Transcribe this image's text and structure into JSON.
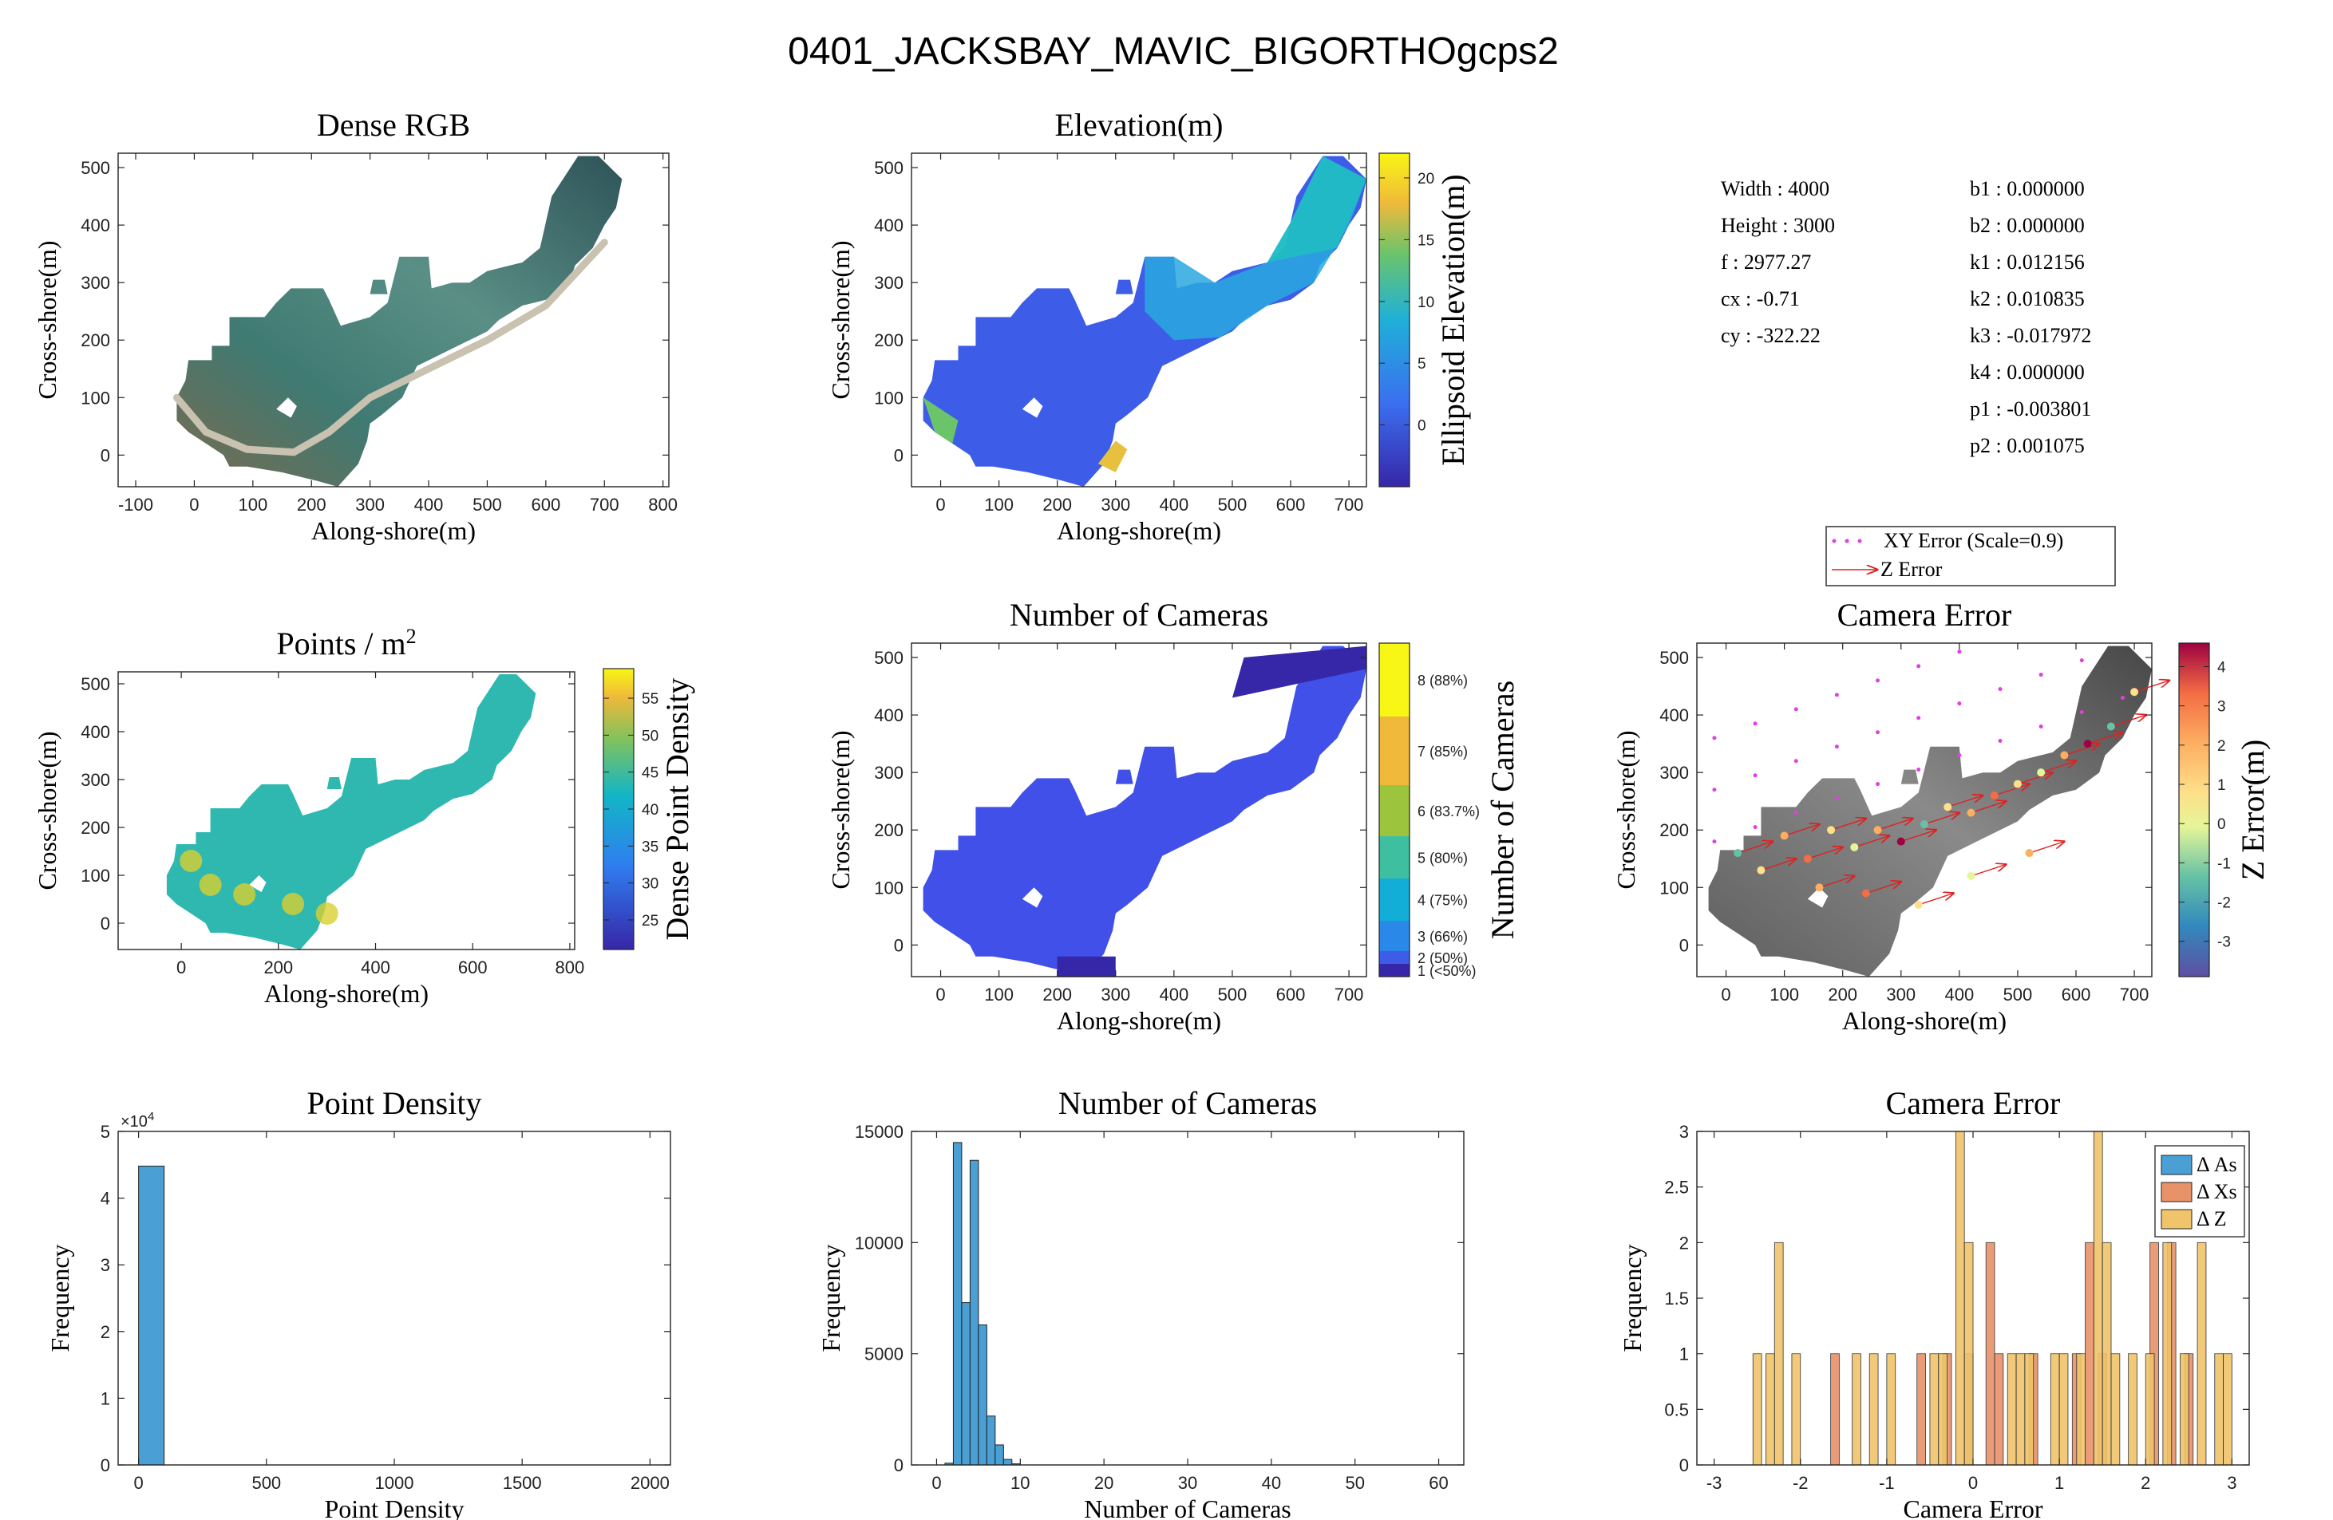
{
  "figure_title": "0401_JACKSBAY_MAVIC_BIGORTHOgcps2",
  "camera_params": {
    "left": [
      {
        "label": "Width",
        "value": "4000"
      },
      {
        "label": "Height",
        "value": "3000"
      },
      {
        "label": "f",
        "value": "2977.27"
      },
      {
        "label": "cx",
        "value": "-0.71"
      },
      {
        "label": "cy",
        "value": "-322.22"
      }
    ],
    "right": [
      {
        "label": "b1",
        "value": "0.000000"
      },
      {
        "label": "b2",
        "value": "0.000000"
      },
      {
        "label": "k1",
        "value": "0.012156"
      },
      {
        "label": "k2",
        "value": "0.010835"
      },
      {
        "label": "k3",
        "value": "-0.017972"
      },
      {
        "label": "k4",
        "value": "0.000000"
      },
      {
        "label": "p1",
        "value": "-0.003801"
      },
      {
        "label": "p2",
        "value": "0.001075"
      }
    ]
  },
  "error_legend": {
    "xy": "XY Error (Scale=0.9)",
    "z": "Z Error"
  },
  "colors": {
    "hist_blue": "#4a9fd4",
    "hist_orange": "#e8926a",
    "hist_yellow": "#f0c46a",
    "map_blue": "#3d5de8",
    "map_dark": "#3626a8"
  },
  "chart_data": [
    {
      "id": "dense-rgb",
      "type": "heatmap",
      "title": "Dense RGB",
      "xlabel": "Along-shore(m)",
      "ylabel": "Cross-shore(m)",
      "xlim": [
        -130,
        810
      ],
      "ylim": [
        -55,
        525
      ],
      "xticks": [
        -100,
        0,
        100,
        200,
        300,
        400,
        500,
        600,
        700,
        800
      ],
      "yticks": [
        0,
        100,
        200,
        300,
        400,
        500
      ]
    },
    {
      "id": "elevation",
      "type": "heatmap",
      "title": "Elevation(m)",
      "xlabel": "Along-shore(m)",
      "ylabel": "Cross-shore(m)",
      "xlim": [
        -50,
        730
      ],
      "ylim": [
        -55,
        525
      ],
      "xticks": [
        0,
        100,
        200,
        300,
        400,
        500,
        600,
        700
      ],
      "yticks": [
        0,
        100,
        200,
        300,
        400,
        500
      ],
      "colorbar": {
        "label": "Ellipsoid Elevation(m)",
        "range": [
          -5,
          22
        ],
        "ticks": [
          "0",
          "5",
          "10",
          "15",
          "20"
        ],
        "tick_values": [
          0,
          5,
          10,
          15,
          20
        ]
      }
    },
    {
      "id": "points-density-map",
      "type": "heatmap",
      "title": "Points / m",
      "title_superscript": "2",
      "xlabel": "Along-shore(m)",
      "ylabel": "Cross-shore(m)",
      "xlim": [
        -130,
        810
      ],
      "ylim": [
        -55,
        525
      ],
      "xticks": [
        0,
        200,
        400,
        600,
        800
      ],
      "yticks": [
        0,
        100,
        200,
        300,
        400,
        500
      ],
      "colorbar": {
        "label": "Dense Point Density",
        "range": [
          21,
          59
        ],
        "ticks": [
          "25",
          "30",
          "35",
          "40",
          "45",
          "50",
          "55"
        ],
        "tick_values": [
          25,
          30,
          35,
          40,
          45,
          50,
          55
        ]
      }
    },
    {
      "id": "cameras-map",
      "type": "heatmap",
      "title": "Number of Cameras",
      "xlabel": "Along-shore(m)",
      "ylabel": "Cross-shore(m)",
      "xlim": [
        -50,
        730
      ],
      "ylim": [
        -55,
        525
      ],
      "xticks": [
        0,
        100,
        200,
        300,
        400,
        500,
        600,
        700
      ],
      "yticks": [
        0,
        100,
        200,
        300,
        400,
        500
      ],
      "colorbar": {
        "label": "Number of Cameras",
        "labels": [
          "1 (<50%)",
          "2 (50%)",
          "3 (66%)",
          "4 (75%)",
          "5 (80%)",
          "6 (83.7%)",
          "7 (85%)",
          "8 (88%)"
        ]
      }
    },
    {
      "id": "camera-error-map",
      "type": "scatter",
      "title": "Camera Error",
      "xlabel": "Along-shore(m)",
      "ylabel": "Cross-shore(m)",
      "xlim": [
        -50,
        730
      ],
      "ylim": [
        -55,
        525
      ],
      "xticks": [
        0,
        100,
        200,
        300,
        400,
        500,
        600,
        700
      ],
      "yticks": [
        0,
        100,
        200,
        300,
        400,
        500
      ],
      "colorbar": {
        "label": "Z Error(m)",
        "range": [
          -3.9,
          4.6
        ],
        "ticks": [
          "-3",
          "-2",
          "-1",
          "0",
          "1",
          "2",
          "3",
          "4"
        ],
        "tick_values": [
          -3,
          -2,
          -1,
          0,
          1,
          2,
          3,
          4
        ]
      }
    },
    {
      "id": "point-density-hist",
      "type": "bar",
      "title": "Point Density",
      "xlabel": "Point Density",
      "ylabel": "Frequency",
      "xlim": [
        -80,
        2080
      ],
      "ylim": [
        0,
        50000
      ],
      "exponent_label": "×10",
      "exponent_power": "4",
      "xticks": [
        "0",
        "500",
        "1000",
        "1500",
        "2000"
      ],
      "yticks": [
        "0",
        "1",
        "2",
        "3",
        "4",
        "5"
      ],
      "bins": [
        {
          "x0": 0,
          "x1": 100,
          "value": 44800
        }
      ]
    },
    {
      "id": "cameras-hist",
      "type": "bar",
      "title": "Number of Cameras",
      "xlabel": "Number of Cameras",
      "ylabel": "Frequency",
      "xlim": [
        -3,
        63
      ],
      "ylim": [
        0,
        15000
      ],
      "xticks": [
        "0",
        "10",
        "20",
        "30",
        "40",
        "50",
        "60"
      ],
      "yticks": [
        "0",
        "5000",
        "10000",
        "15000"
      ],
      "bins": [
        {
          "x0": 1,
          "x1": 2,
          "value": 80
        },
        {
          "x0": 2,
          "x1": 3,
          "value": 14500
        },
        {
          "x0": 3,
          "x1": 4,
          "value": 7300
        },
        {
          "x0": 4,
          "x1": 5,
          "value": 13700
        },
        {
          "x0": 5,
          "x1": 6,
          "value": 6300
        },
        {
          "x0": 6,
          "x1": 7,
          "value": 2200
        },
        {
          "x0": 7,
          "x1": 8,
          "value": 900
        },
        {
          "x0": 8,
          "x1": 9,
          "value": 250
        },
        {
          "x0": 9,
          "x1": 10,
          "value": 50
        }
      ]
    },
    {
      "id": "camera-error-hist",
      "type": "bar",
      "title": "Camera Error",
      "xlabel": "Camera Error",
      "ylabel": "Frequency",
      "xlim": [
        -3.2,
        3.2
      ],
      "ylim": [
        0,
        3
      ],
      "xticks": [
        "-3",
        "-2",
        "-1",
        "0",
        "1",
        "2",
        "3"
      ],
      "yticks": [
        "0",
        "0.5",
        "1",
        "1.5",
        "2",
        "2.5",
        "3"
      ],
      "legend": [
        "Δ As",
        "Δ Xs",
        "Δ Z"
      ],
      "series": [
        {
          "name": "Δ As",
          "bins": []
        },
        {
          "name": "Δ Xs",
          "bins": [
            {
              "x": -1.6,
              "v": 1
            },
            {
              "x": -0.6,
              "v": 1
            },
            {
              "x": -0.3,
              "v": 1
            },
            {
              "x": -0.05,
              "v": 1
            },
            {
              "x": 0.2,
              "v": 2
            },
            {
              "x": 0.3,
              "v": 1
            },
            {
              "x": 0.7,
              "v": 1
            },
            {
              "x": 1.2,
              "v": 1
            },
            {
              "x": 1.35,
              "v": 2
            },
            {
              "x": 1.5,
              "v": 1
            },
            {
              "x": 2.1,
              "v": 2
            },
            {
              "x": 2.3,
              "v": 2
            },
            {
              "x": 2.5,
              "v": 1
            }
          ]
        },
        {
          "name": "Δ Z",
          "bins": [
            {
              "x": -2.5,
              "v": 1
            },
            {
              "x": -2.35,
              "v": 1
            },
            {
              "x": -2.25,
              "v": 2
            },
            {
              "x": -2.05,
              "v": 1
            },
            {
              "x": -1.35,
              "v": 1
            },
            {
              "x": -1.15,
              "v": 1
            },
            {
              "x": -0.95,
              "v": 1
            },
            {
              "x": -0.45,
              "v": 1
            },
            {
              "x": -0.35,
              "v": 1
            },
            {
              "x": -0.15,
              "v": 3
            },
            {
              "x": -0.05,
              "v": 2
            },
            {
              "x": 0.45,
              "v": 1
            },
            {
              "x": 0.55,
              "v": 1
            },
            {
              "x": 0.65,
              "v": 1
            },
            {
              "x": 0.95,
              "v": 1
            },
            {
              "x": 1.05,
              "v": 1
            },
            {
              "x": 1.25,
              "v": 1
            },
            {
              "x": 1.45,
              "v": 3
            },
            {
              "x": 1.55,
              "v": 2
            },
            {
              "x": 1.65,
              "v": 1
            },
            {
              "x": 1.85,
              "v": 1
            },
            {
              "x": 2.05,
              "v": 1
            },
            {
              "x": 2.25,
              "v": 2
            },
            {
              "x": 2.45,
              "v": 1
            },
            {
              "x": 2.65,
              "v": 2
            },
            {
              "x": 2.85,
              "v": 1
            },
            {
              "x": 2.95,
              "v": 1
            }
          ]
        }
      ]
    }
  ]
}
